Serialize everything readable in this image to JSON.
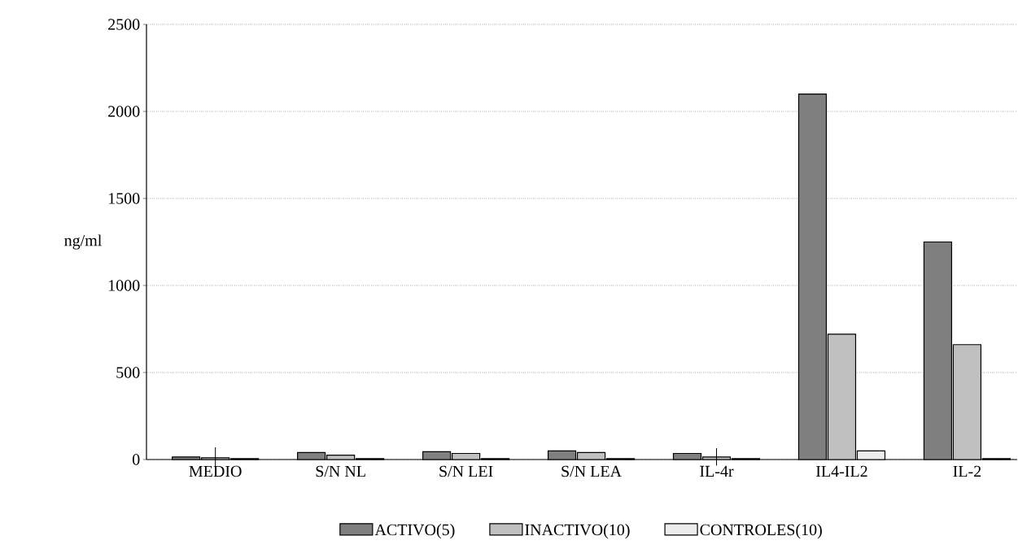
{
  "chart_data": {
    "type": "bar",
    "ylabel": "ng/ml",
    "categories": [
      "MEDIO",
      "S/N NL",
      "S/N LEI",
      "S/N LEA",
      "IL-4r",
      "IL4-IL2",
      "IL-2"
    ],
    "series": [
      {
        "name": "ACTIVO(5)",
        "color": "#7f7f7f",
        "values": [
          15,
          40,
          45,
          50,
          35,
          2100,
          1250
        ]
      },
      {
        "name": "INACTIVO(10)",
        "color": "#c0c0c0",
        "values": [
          10,
          25,
          35,
          40,
          15,
          720,
          660
        ],
        "errors": [
          60,
          null,
          null,
          null,
          50,
          null,
          null
        ]
      },
      {
        "name": "CONTROLES(10)",
        "color": "#ececec",
        "values": [
          5,
          5,
          5,
          5,
          5,
          50,
          5
        ]
      }
    ],
    "ylim": [
      0,
      2500
    ],
    "yticks": [
      0,
      500,
      1000,
      1500,
      2000,
      2500
    ],
    "grid": "y",
    "legend": "bottom"
  }
}
